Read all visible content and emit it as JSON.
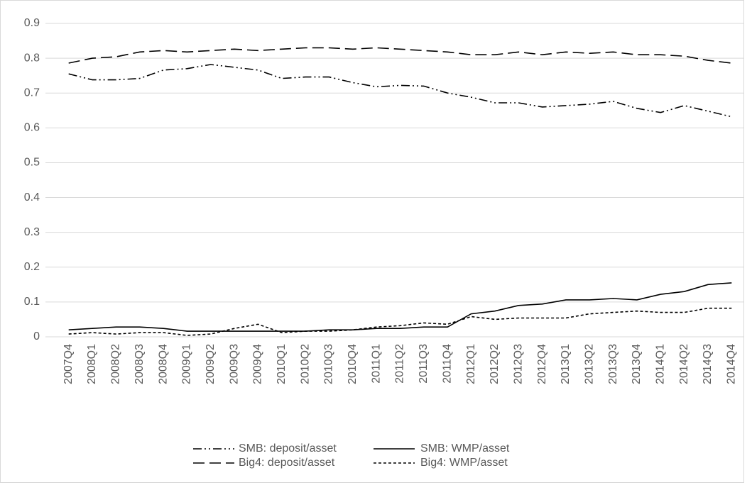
{
  "chart_data": {
    "type": "line",
    "categories": [
      "2007Q4",
      "2008Q1",
      "2008Q2",
      "2008Q3",
      "2008Q4",
      "2009Q1",
      "2009Q2",
      "2009Q3",
      "2009Q4",
      "2010Q1",
      "2010Q2",
      "2010Q3",
      "2010Q4",
      "2011Q1",
      "2011Q2",
      "2011Q3",
      "2011Q4",
      "2012Q1",
      "2012Q2",
      "2012Q3",
      "2012Q4",
      "2013Q1",
      "2013Q2",
      "2013Q3",
      "2013Q4",
      "2014Q1",
      "2014Q2",
      "2014Q3",
      "2014Q4"
    ],
    "series": [
      {
        "name": "SMB: deposit/asset",
        "color": "#000000",
        "dash": "dashdot",
        "values": [
          0.755,
          0.738,
          0.738,
          0.742,
          0.766,
          0.77,
          0.782,
          0.774,
          0.766,
          0.742,
          0.746,
          0.746,
          0.73,
          0.718,
          0.722,
          0.72,
          0.7,
          0.688,
          0.672,
          0.672,
          0.66,
          0.664,
          0.668,
          0.676,
          0.656,
          0.644,
          0.664,
          0.648,
          0.632
        ]
      },
      {
        "name": "SMB: WMP/asset",
        "color": "#000000",
        "dash": "solid",
        "values": [
          0.02,
          0.024,
          0.028,
          0.028,
          0.024,
          0.016,
          0.016,
          0.016,
          0.016,
          0.016,
          0.016,
          0.02,
          0.02,
          0.024,
          0.024,
          0.028,
          0.028,
          0.066,
          0.074,
          0.09,
          0.094,
          0.106,
          0.106,
          0.11,
          0.106,
          0.122,
          0.13,
          0.15,
          0.155
        ]
      },
      {
        "name": "Big4: deposit/asset",
        "color": "#000000",
        "dash": "dashed",
        "values": [
          0.786,
          0.8,
          0.804,
          0.818,
          0.822,
          0.818,
          0.822,
          0.826,
          0.822,
          0.826,
          0.83,
          0.83,
          0.826,
          0.83,
          0.826,
          0.822,
          0.818,
          0.81,
          0.81,
          0.818,
          0.81,
          0.818,
          0.814,
          0.818,
          0.81,
          0.81,
          0.806,
          0.794,
          0.786
        ]
      },
      {
        "name": "Big4: WMP/asset",
        "color": "#000000",
        "dash": "dotted",
        "values": [
          0.008,
          0.012,
          0.008,
          0.012,
          0.012,
          0.004,
          0.008,
          0.024,
          0.036,
          0.012,
          0.016,
          0.016,
          0.02,
          0.028,
          0.032,
          0.04,
          0.036,
          0.058,
          0.05,
          0.054,
          0.054,
          0.054,
          0.066,
          0.07,
          0.074,
          0.07,
          0.07,
          0.082,
          0.082
        ]
      }
    ],
    "ylim": [
      0,
      0.9
    ],
    "yticks": [
      0,
      0.1,
      0.2,
      0.3,
      0.4,
      0.5,
      0.6,
      0.7,
      0.8,
      0.9
    ],
    "grid": true,
    "legend": "bottom"
  }
}
